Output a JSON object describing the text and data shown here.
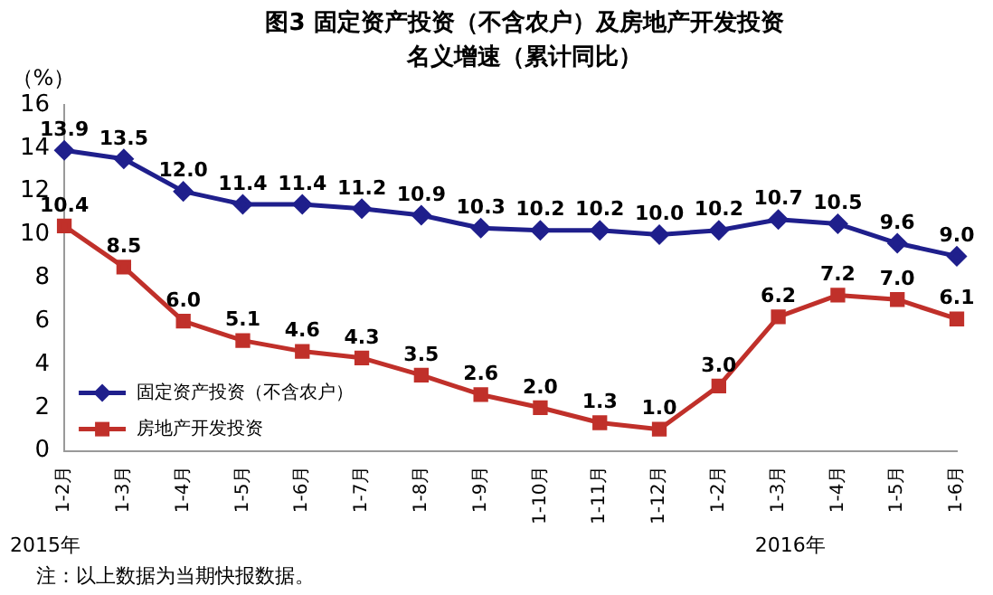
{
  "chart_data": {
    "type": "line",
    "title": "图3 固定资产投资（不含农户）及房地产开发投资",
    "subtitle": "名义增速（累计同比）",
    "ylabel": "（%）",
    "categories": [
      "1-2月",
      "1-3月",
      "1-4月",
      "1-5月",
      "1-6月",
      "1-7月",
      "1-8月",
      "1-9月",
      "1-10月",
      "1-11月",
      "1-12月",
      "1-2月",
      "1-3月",
      "1-4月",
      "1-5月",
      "1-6月"
    ],
    "series": [
      {
        "name": "固定资产投资（不含农户）",
        "color": "#1f1f8c",
        "marker": "diamond",
        "values": [
          13.9,
          13.5,
          12.0,
          11.4,
          11.4,
          11.2,
          10.9,
          10.3,
          10.2,
          10.2,
          10.0,
          10.2,
          10.7,
          10.5,
          9.6,
          9.0
        ],
        "value_labels": [
          "13.9",
          "13.5",
          "12.0",
          "11.4",
          "11.4",
          "11.2",
          "10.9",
          "10.3",
          "10.2",
          "10.2",
          "10.0",
          "10.2",
          "10.7",
          "10.5",
          "9.6",
          "9.0"
        ]
      },
      {
        "name": "房地产开发投资",
        "color": "#c0302a",
        "marker": "square",
        "values": [
          10.4,
          8.5,
          6.0,
          5.1,
          4.6,
          4.3,
          3.5,
          2.6,
          2.0,
          1.3,
          1.0,
          3.0,
          6.2,
          7.2,
          7.0,
          6.1
        ],
        "value_labels": [
          "10.4",
          "8.5",
          "6.0",
          "5.1",
          "4.6",
          "4.3",
          "3.5",
          "2.6",
          "2.0",
          "1.3",
          "1.0",
          "3.0",
          "6.2",
          "7.2",
          "7.0",
          "6.1"
        ]
      }
    ],
    "ylim": [
      0,
      16
    ],
    "yticks": [
      0,
      2,
      4,
      6,
      8,
      10,
      12,
      14,
      16
    ],
    "grid": false,
    "legend": "bottom left",
    "line_style": "solid",
    "annotations": [
      "2015年",
      "2016年",
      "注：以上数据为当期快报数据。"
    ]
  }
}
